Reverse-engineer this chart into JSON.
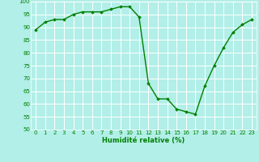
{
  "x": [
    0,
    1,
    2,
    3,
    4,
    5,
    6,
    7,
    8,
    9,
    10,
    11,
    12,
    13,
    14,
    15,
    16,
    17,
    18,
    19,
    20,
    21,
    22,
    23
  ],
  "y": [
    89,
    92,
    93,
    93,
    95,
    96,
    96,
    96,
    97,
    98,
    98,
    94,
    68,
    62,
    62,
    58,
    57,
    56,
    67,
    75,
    82,
    88,
    91,
    93
  ],
  "line_color": "#008000",
  "marker": "D",
  "marker_size": 1.8,
  "bg_color": "#b2efe8",
  "grid_color": "#ffffff",
  "xlabel": "Humidité relative (%)",
  "xlabel_color": "#008000",
  "tick_color": "#008000",
  "ylim": [
    50,
    100
  ],
  "xlim": [
    -0.5,
    23.5
  ],
  "yticks": [
    50,
    55,
    60,
    65,
    70,
    75,
    80,
    85,
    90,
    95,
    100
  ],
  "xticks": [
    0,
    1,
    2,
    3,
    4,
    5,
    6,
    7,
    8,
    9,
    10,
    11,
    12,
    13,
    14,
    15,
    16,
    17,
    18,
    19,
    20,
    21,
    22,
    23
  ],
  "tick_fontsize": 5.0,
  "xlabel_fontsize": 6.0,
  "linewidth": 1.0
}
